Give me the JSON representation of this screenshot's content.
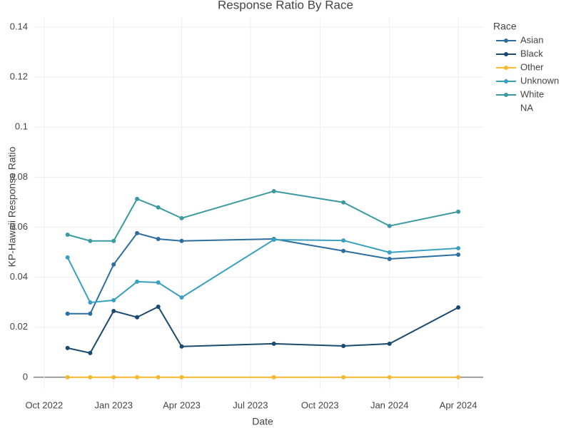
{
  "chart_data": {
    "type": "line",
    "title": "Response Ratio By Race",
    "x_label": "Date",
    "y_label": "KP-Hawaii Response Ratio",
    "legend_title": "Race",
    "x": [
      "2022-11",
      "2022-12",
      "2023-01",
      "2023-02",
      "2023-03",
      "2023-04",
      "2023-08",
      "2023-11",
      "2024-01",
      "2024-04"
    ],
    "series": [
      {
        "name": "Asian",
        "color": "#2c6e9e",
        "values": [
          0.0254,
          0.0254,
          0.0451,
          0.0576,
          0.0553,
          0.0545,
          0.0553,
          0.0505,
          0.0473,
          0.049
        ]
      },
      {
        "name": "Black",
        "color": "#1a4a6e",
        "values": [
          0.0117,
          0.0097,
          0.0265,
          0.024,
          0.0282,
          0.0123,
          0.0134,
          0.0125,
          0.0134,
          0.0279
        ]
      },
      {
        "name": "Other",
        "color": "#f5b82e",
        "values": [
          0,
          0,
          0,
          0,
          0,
          0,
          0,
          0,
          0,
          0
        ]
      },
      {
        "name": "Unknown",
        "color": "#3aa0c0",
        "values": [
          0.0479,
          0.0299,
          0.0308,
          0.0382,
          0.0379,
          0.0319,
          0.055,
          0.0547,
          0.0499,
          0.0516
        ]
      },
      {
        "name": "White",
        "color": "#3a9aa0",
        "values": [
          0.057,
          0.0545,
          0.0545,
          0.0713,
          0.0679,
          0.0636,
          0.0744,
          0.0699,
          0.0605,
          0.0662
        ]
      },
      {
        "name": "NA",
        "values": [
          null,
          null,
          null,
          null,
          null,
          null,
          null,
          null,
          null,
          null
        ]
      }
    ],
    "xlim": [
      "2022-09-17",
      "2024-05-04"
    ],
    "xticks": [
      {
        "value": "2022-10",
        "label": "Oct 2022"
      },
      {
        "value": "2023-01",
        "label": "Jan 2023"
      },
      {
        "value": "2023-04",
        "label": "Apr 2023"
      },
      {
        "value": "2023-07",
        "label": "Jul 2023"
      },
      {
        "value": "2023-10",
        "label": "Oct 2023"
      },
      {
        "value": "2024-01",
        "label": "Jan 2024"
      },
      {
        "value": "2024-04",
        "label": "Apr 2024"
      }
    ],
    "ylim": [
      -0.0046,
      0.1437
    ],
    "yticks": [
      0,
      0.02,
      0.04,
      0.06,
      0.08,
      0.1,
      0.12,
      0.14
    ],
    "grid": true
  }
}
